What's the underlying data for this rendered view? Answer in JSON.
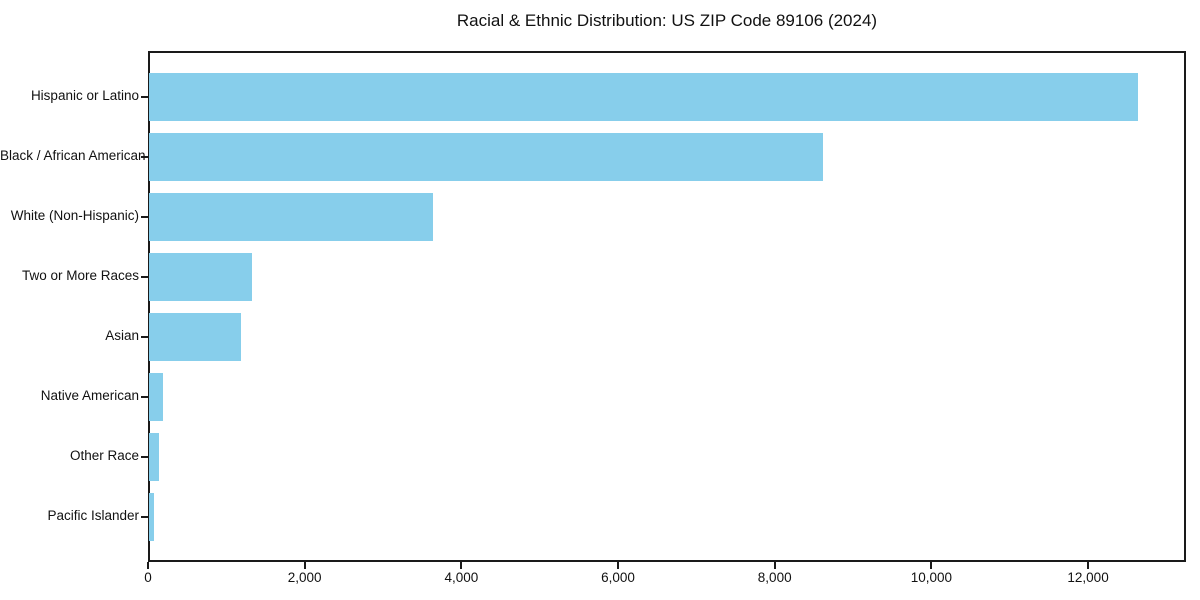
{
  "chart_data": {
    "type": "bar",
    "orientation": "horizontal",
    "title": "Racial & Ethnic Distribution: US ZIP Code 89106 (2024)",
    "categories": [
      "Hispanic or Latino",
      "Black / African American",
      "White (Non-Hispanic)",
      "Two or More Races",
      "Asian",
      "Native American",
      "Other Race",
      "Pacific Islander"
    ],
    "values": [
      12620,
      8600,
      3620,
      1310,
      1170,
      180,
      125,
      60
    ],
    "xlabel": "",
    "ylabel": "",
    "xlim": [
      0,
      13250
    ],
    "x_ticks": [
      0,
      2000,
      4000,
      6000,
      8000,
      10000,
      12000
    ],
    "x_tick_labels": [
      "0",
      "2,000",
      "4,000",
      "6,000",
      "8,000",
      "10,000",
      "12,000"
    ],
    "bar_color": "#87CEEB",
    "text_color": "#111111",
    "spine_color": "#1a1a1a",
    "grid": false,
    "legend": "none"
  }
}
